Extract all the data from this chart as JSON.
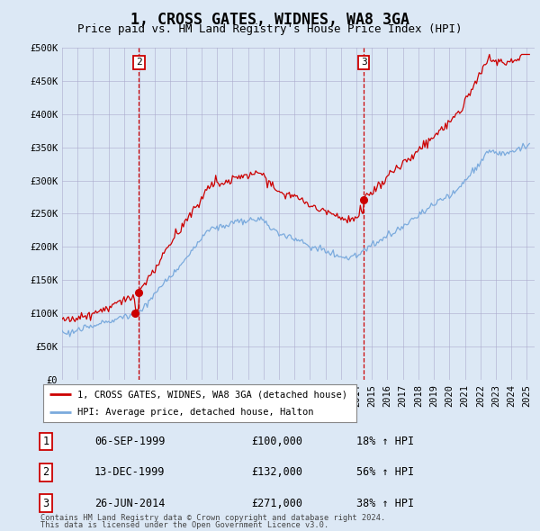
{
  "title": "1, CROSS GATES, WIDNES, WA8 3GA",
  "subtitle": "Price paid vs. HM Land Registry's House Price Index (HPI)",
  "hpi_label": "HPI: Average price, detached house, Halton",
  "price_label": "1, CROSS GATES, WIDNES, WA8 3GA (detached house)",
  "footer_line1": "Contains HM Land Registry data © Crown copyright and database right 2024.",
  "footer_line2": "This data is licensed under the Open Government Licence v3.0.",
  "sales": [
    {
      "num": 1,
      "date_label": "06-SEP-1999",
      "date_x": 1999.69,
      "price": 100000,
      "pct": "18% ↑ HPI",
      "show_vline": false
    },
    {
      "num": 2,
      "date_label": "13-DEC-1999",
      "date_x": 1999.96,
      "price": 132000,
      "pct": "56% ↑ HPI",
      "show_vline": true
    },
    {
      "num": 3,
      "date_label": "26-JUN-2014",
      "date_x": 2014.48,
      "price": 271000,
      "pct": "38% ↑ HPI",
      "show_vline": true
    }
  ],
  "vline_color": "#cc0000",
  "sale_marker_color": "#cc0000",
  "price_line_color": "#cc0000",
  "hpi_line_color": "#7aaadd",
  "ylim": [
    0,
    500000
  ],
  "yticks": [
    0,
    50000,
    100000,
    150000,
    200000,
    250000,
    300000,
    350000,
    400000,
    450000,
    500000
  ],
  "xlim_start": 1995.0,
  "xlim_end": 2025.5,
  "background_color": "#dce8f5",
  "plot_bg_color": "#dce8f5",
  "outer_bg_color": "#dce8f5",
  "grid_color": "#aaaacc",
  "title_fontsize": 12,
  "subtitle_fontsize": 9,
  "tick_fontsize": 7.5
}
